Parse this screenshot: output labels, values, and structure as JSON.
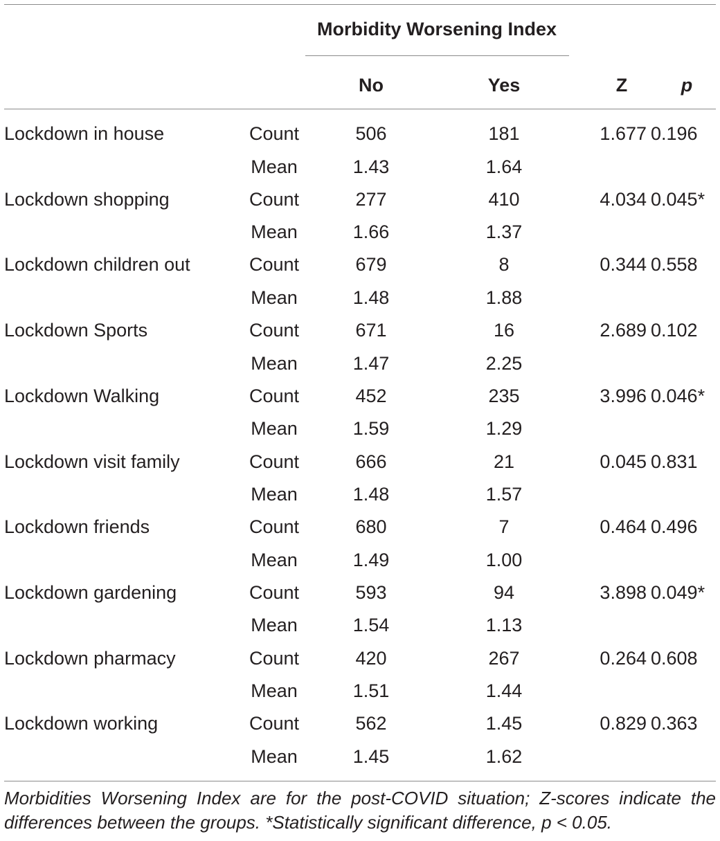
{
  "table": {
    "group_header": "Morbidity Worsening Index",
    "col_no": "No",
    "col_yes": "Yes",
    "col_z": "Z",
    "col_p": "p",
    "rows": [
      {
        "label": "Lockdown in house",
        "count_label": "Count",
        "count_no": "506",
        "count_yes": "181",
        "z": "1.677",
        "p": "0.196",
        "mean_label": "Mean",
        "mean_no": "1.43",
        "mean_yes": "1.64"
      },
      {
        "label": "Lockdown shopping",
        "count_label": "Count",
        "count_no": "277",
        "count_yes": "410",
        "z": "4.034",
        "p": "0.045*",
        "mean_label": "Mean",
        "mean_no": "1.66",
        "mean_yes": "1.37"
      },
      {
        "label": "Lockdown children out",
        "count_label": "Count",
        "count_no": "679",
        "count_yes": "8",
        "z": "0.344",
        "p": "0.558",
        "mean_label": "Mean",
        "mean_no": "1.48",
        "mean_yes": "1.88"
      },
      {
        "label": "Lockdown Sports",
        "count_label": "Count",
        "count_no": "671",
        "count_yes": "16",
        "z": "2.689",
        "p": "0.102",
        "mean_label": "Mean",
        "mean_no": "1.47",
        "mean_yes": "2.25"
      },
      {
        "label": "Lockdown Walking",
        "count_label": "Count",
        "count_no": "452",
        "count_yes": "235",
        "z": "3.996",
        "p": "0.046*",
        "mean_label": "Mean",
        "mean_no": "1.59",
        "mean_yes": "1.29"
      },
      {
        "label": "Lockdown visit family",
        "count_label": "Count",
        "count_no": "666",
        "count_yes": "21",
        "z": "0.045",
        "p": "0.831",
        "mean_label": "Mean",
        "mean_no": "1.48",
        "mean_yes": "1.57"
      },
      {
        "label": "Lockdown friends",
        "count_label": "Count",
        "count_no": "680",
        "count_yes": "7",
        "z": "0.464",
        "p": "0.496",
        "mean_label": "Mean",
        "mean_no": "1.49",
        "mean_yes": "1.00"
      },
      {
        "label": "Lockdown gardening",
        "count_label": "Count",
        "count_no": "593",
        "count_yes": "94",
        "z": "3.898",
        "p": "0.049*",
        "mean_label": "Mean",
        "mean_no": "1.54",
        "mean_yes": "1.13"
      },
      {
        "label": "Lockdown pharmacy",
        "count_label": "Count",
        "count_no": "420",
        "count_yes": "267",
        "z": "0.264",
        "p": "0.608",
        "mean_label": "Mean",
        "mean_no": "1.51",
        "mean_yes": "1.44"
      },
      {
        "label": "Lockdown working",
        "count_label": "Count",
        "count_no": "562",
        "count_yes": "1.45",
        "z": "0.829",
        "p": "0.363",
        "mean_label": "Mean",
        "mean_no": "1.45",
        "mean_yes": "1.62"
      }
    ]
  },
  "footnote": "Morbidities Worsening Index are for the post-COVID situation; Z-scores indicate the differences between the groups. *Statistically significant difference, p < 0.05."
}
